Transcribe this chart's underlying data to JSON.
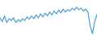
{
  "values": [
    38,
    30,
    42,
    28,
    36,
    32,
    38,
    28,
    34,
    30,
    36,
    32,
    40,
    35,
    42,
    36,
    44,
    38,
    46,
    40,
    48,
    42,
    50,
    44,
    52,
    46,
    54,
    48,
    56,
    50,
    55,
    52,
    58,
    54,
    60,
    55,
    58,
    52,
    56,
    50,
    20,
    5,
    30,
    45
  ],
  "line_color": "#4da3d4",
  "background_color": "#ffffff",
  "ylim": [
    0,
    75
  ],
  "linewidth": 0.9
}
